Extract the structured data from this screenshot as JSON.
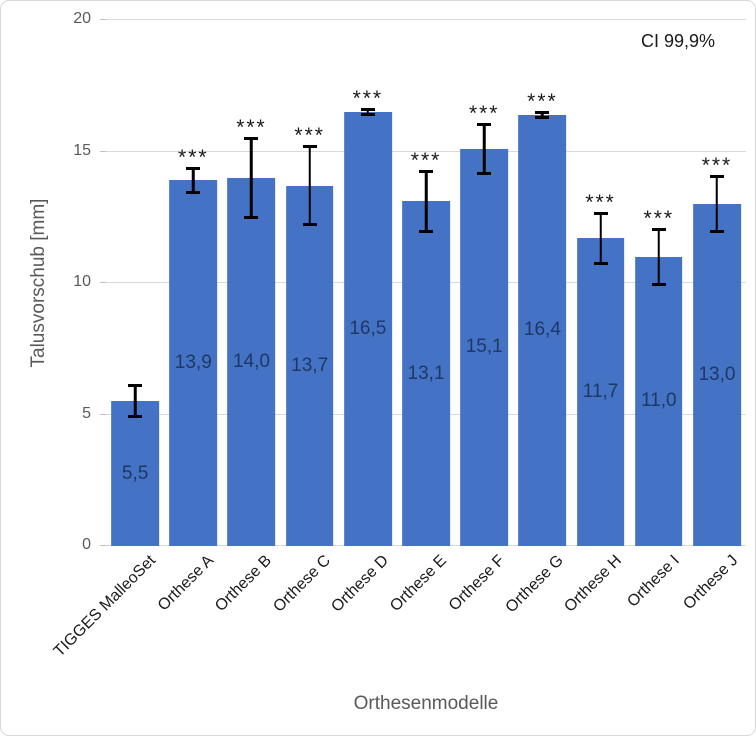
{
  "chart_data": {
    "type": "bar",
    "title": "",
    "annotation": "CI 99,9%",
    "xlabel": "Orthesenmodelle",
    "ylabel": "Talusvorschub [mm]",
    "ylim": [
      0,
      20
    ],
    "yticks": [
      0,
      5,
      10,
      15,
      20
    ],
    "ytick_labels": [
      "0",
      "5",
      "10",
      "15",
      "20"
    ],
    "grid": true,
    "legend": "none",
    "categories": [
      "TIGGES MalleoSet",
      "Orthese A",
      "Orthese B",
      "Orthese C",
      "Orthese D",
      "Orthese E",
      "Orthese F",
      "Orthese G",
      "Orthese H",
      "Orthese I",
      "Orthese J"
    ],
    "values": [
      5.5,
      13.9,
      14.0,
      13.7,
      16.5,
      13.1,
      15.1,
      16.4,
      11.7,
      11.0,
      13.0
    ],
    "value_labels": [
      "5,5",
      "13,9",
      "14,0",
      "13,7",
      "16,5",
      "13,1",
      "15,1",
      "16,4",
      "11,7",
      "11,0",
      "13,0"
    ],
    "errors": [
      0.65,
      0.5,
      1.55,
      1.55,
      0.15,
      1.2,
      1.0,
      0.15,
      1.0,
      1.1,
      1.1
    ],
    "significance": [
      "",
      "***",
      "***",
      "***",
      "***",
      "***",
      "***",
      "***",
      "***",
      "***",
      "***"
    ],
    "colors": {
      "bar_fill": "#4472C4",
      "bar_value_label": "#1F3864",
      "error_bar": "#000000",
      "grid_line": "#D9D9D9",
      "axis_text": "#595959",
      "category_text": "#1A1A1A",
      "annotation_text": "#1A1A1A",
      "border": "#D9D9D9",
      "background": "#FFFFFF"
    }
  }
}
